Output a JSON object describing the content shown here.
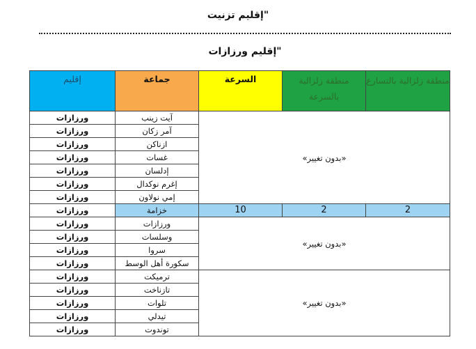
{
  "titles": {
    "first": "\"إقليم تزنيت",
    "second": "\"إقليم ورزازات"
  },
  "colors": {
    "province_header": "#00b0f0",
    "commune_header": "#f8a94c",
    "speed_header": "#ffff00",
    "zone_header": "#1fa244",
    "highlight_row": "#9fd3f2"
  },
  "table": {
    "headers": [
      "إقليم",
      "جماعة",
      "السرعة",
      "منطقة زلزالية بالسرعة",
      "منطقة زلزالية بالتسارع"
    ],
    "no_change": "«بدون تغيير»",
    "rows": [
      {
        "province": "ورزازات",
        "commune": "آيت زينب"
      },
      {
        "province": "ورزازات",
        "commune": "آمر زكان"
      },
      {
        "province": "ورزازات",
        "commune": "ازناكن"
      },
      {
        "province": "ورزازات",
        "commune": "غسات"
      },
      {
        "province": "ورزازات",
        "commune": "إدلسان"
      },
      {
        "province": "ورزازات",
        "commune": "إغرم نوكدال"
      },
      {
        "province": "ورزازات",
        "commune": "إمي نولاون"
      },
      {
        "province": "ورزازات",
        "commune": "خزامة",
        "speed": "10",
        "zone_speed": "2",
        "zone_accel": "2"
      },
      {
        "province": "ورزازات",
        "commune": "ورزازات"
      },
      {
        "province": "ورزازات",
        "commune": "وسلسات"
      },
      {
        "province": "ورزازات",
        "commune": "سروا"
      },
      {
        "province": "ورزازات",
        "commune": "سكورة أهل الوسط"
      },
      {
        "province": "ورزازات",
        "commune": "ترميكت"
      },
      {
        "province": "ورزازات",
        "commune": "تازناخت"
      },
      {
        "province": "ورزازات",
        "commune": "تلوات"
      },
      {
        "province": "ورزازات",
        "commune": "تيدلي"
      },
      {
        "province": "ورزازات",
        "commune": "توندوت"
      }
    ]
  }
}
